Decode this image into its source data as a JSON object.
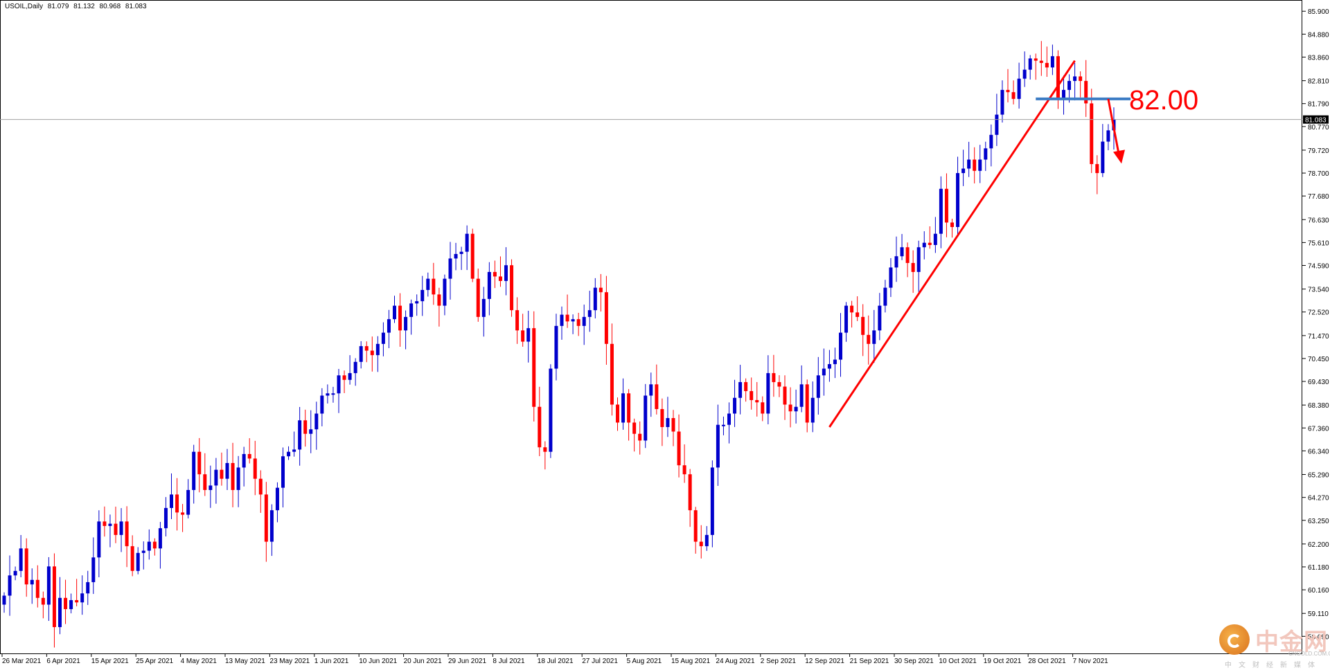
{
  "header": {
    "symbol": "USOIL,Daily",
    "open": "81.079",
    "high": "81.132",
    "low": "80.968",
    "close": "81.083"
  },
  "annotation": {
    "level_label": "82.00",
    "level_value": 82.0
  },
  "watermark": {
    "brand": "中金网",
    "url": "CNGOLD.COM.CN",
    "sub": "中文财经新媒体"
  },
  "colors": {
    "bull": "#0000cc",
    "bear": "#ff0000",
    "level": "#3c7cc4",
    "annotation": "#ff0000",
    "crosshair": "#a0a0a0"
  },
  "chart_data": {
    "type": "candlestick",
    "x_tick_labels": [
      "26 Mar 2021",
      "6 Apr 2021",
      "15 Apr 2021",
      "25 Apr 2021",
      "4 May 2021",
      "13 May 2021",
      "23 May 2021",
      "1 Jun 2021",
      "10 Jun 2021",
      "20 Jun 2021",
      "29 Jun 2021",
      "8 Jul 2021",
      "18 Jul 2021",
      "27 Jul 2021",
      "5 Aug 2021",
      "15 Aug 2021",
      "24 Aug 2021",
      "2 Sep 2021",
      "12 Sep 2021",
      "21 Sep 2021",
      "30 Sep 2021",
      "10 Oct 2021",
      "19 Oct 2021",
      "28 Oct 2021",
      "7 Nov 2021"
    ],
    "y_tick_labels": [
      "85.900",
      "84.880",
      "83.860",
      "82.810",
      "81.790",
      "80.770",
      "79.720",
      "78.700",
      "77.680",
      "76.630",
      "75.610",
      "74.590",
      "73.540",
      "72.520",
      "71.470",
      "70.450",
      "69.430",
      "68.380",
      "67.360",
      "66.340",
      "65.290",
      "64.270",
      "63.250",
      "62.200",
      "61.180",
      "60.160",
      "59.110",
      "58.090"
    ],
    "ylim": [
      57.3,
      86.4
    ],
    "current_price_label": "81.083",
    "current_price": 81.083,
    "closes": [
      59.9,
      60.8,
      61.0,
      62.0,
      60.4,
      60.6,
      59.8,
      59.5,
      61.2,
      58.5,
      59.8,
      59.3,
      59.7,
      59.6,
      60.0,
      60.5,
      61.6,
      63.2,
      63.0,
      63.1,
      62.6,
      63.2,
      62.1,
      61.0,
      61.8,
      61.9,
      62.3,
      62.0,
      62.9,
      63.8,
      64.4,
      63.6,
      63.5,
      64.6,
      66.3,
      65.3,
      64.6,
      64.8,
      65.5,
      65.1,
      65.8,
      64.6,
      65.6,
      66.2,
      66.0,
      65.1,
      64.4,
      62.3,
      63.7,
      64.7,
      66.1,
      66.3,
      66.4,
      67.7,
      67.1,
      67.3,
      68.0,
      68.8,
      68.9,
      68.9,
      69.7,
      69.5,
      69.8,
      70.3,
      71.0,
      70.8,
      70.6,
      71.1,
      71.6,
      72.2,
      72.8,
      71.7,
      72.3,
      72.9,
      73.0,
      73.5,
      74.0,
      73.3,
      72.8,
      74.0,
      74.9,
      75.1,
      75.2,
      76.0,
      74.0,
      72.3,
      73.1,
      74.3,
      74.1,
      73.9,
      74.6,
      72.6,
      71.7,
      71.2,
      71.8,
      68.3,
      66.5,
      66.3,
      70.0,
      71.9,
      72.4,
      72.1,
      72.2,
      71.9,
      72.3,
      72.6,
      73.6,
      73.4,
      71.1,
      68.4,
      67.6,
      68.9,
      67.6,
      67.1,
      66.8,
      68.8,
      69.3,
      68.2,
      67.4,
      67.8,
      67.2,
      65.7,
      65.3,
      63.7,
      62.3,
      62.1,
      62.6,
      65.6,
      67.5,
      67.5,
      68.0,
      68.7,
      69.4,
      69.0,
      68.6,
      68.5,
      68.0,
      69.8,
      69.4,
      69.2,
      68.4,
      68.1,
      68.3,
      69.3,
      67.6,
      68.7,
      69.7,
      70.0,
      70.2,
      70.4,
      71.6,
      72.8,
      72.5,
      72.3,
      71.5,
      71.1,
      71.7,
      72.8,
      73.6,
      74.5,
      75.0,
      75.4,
      74.7,
      74.3,
      75.4,
      75.6,
      75.5,
      76.0,
      78.0,
      76.5,
      76.3,
      78.7,
      78.9,
      79.3,
      78.8,
      79.3,
      79.8,
      80.4,
      81.3,
      82.4,
      82.3,
      82.0,
      82.9,
      83.3,
      83.8,
      83.7,
      83.6,
      83.4,
      83.9,
      82.0,
      82.4,
      82.8,
      83.0,
      82.8,
      81.8,
      79.1,
      78.7,
      80.1,
      80.6,
      81.1
    ]
  }
}
